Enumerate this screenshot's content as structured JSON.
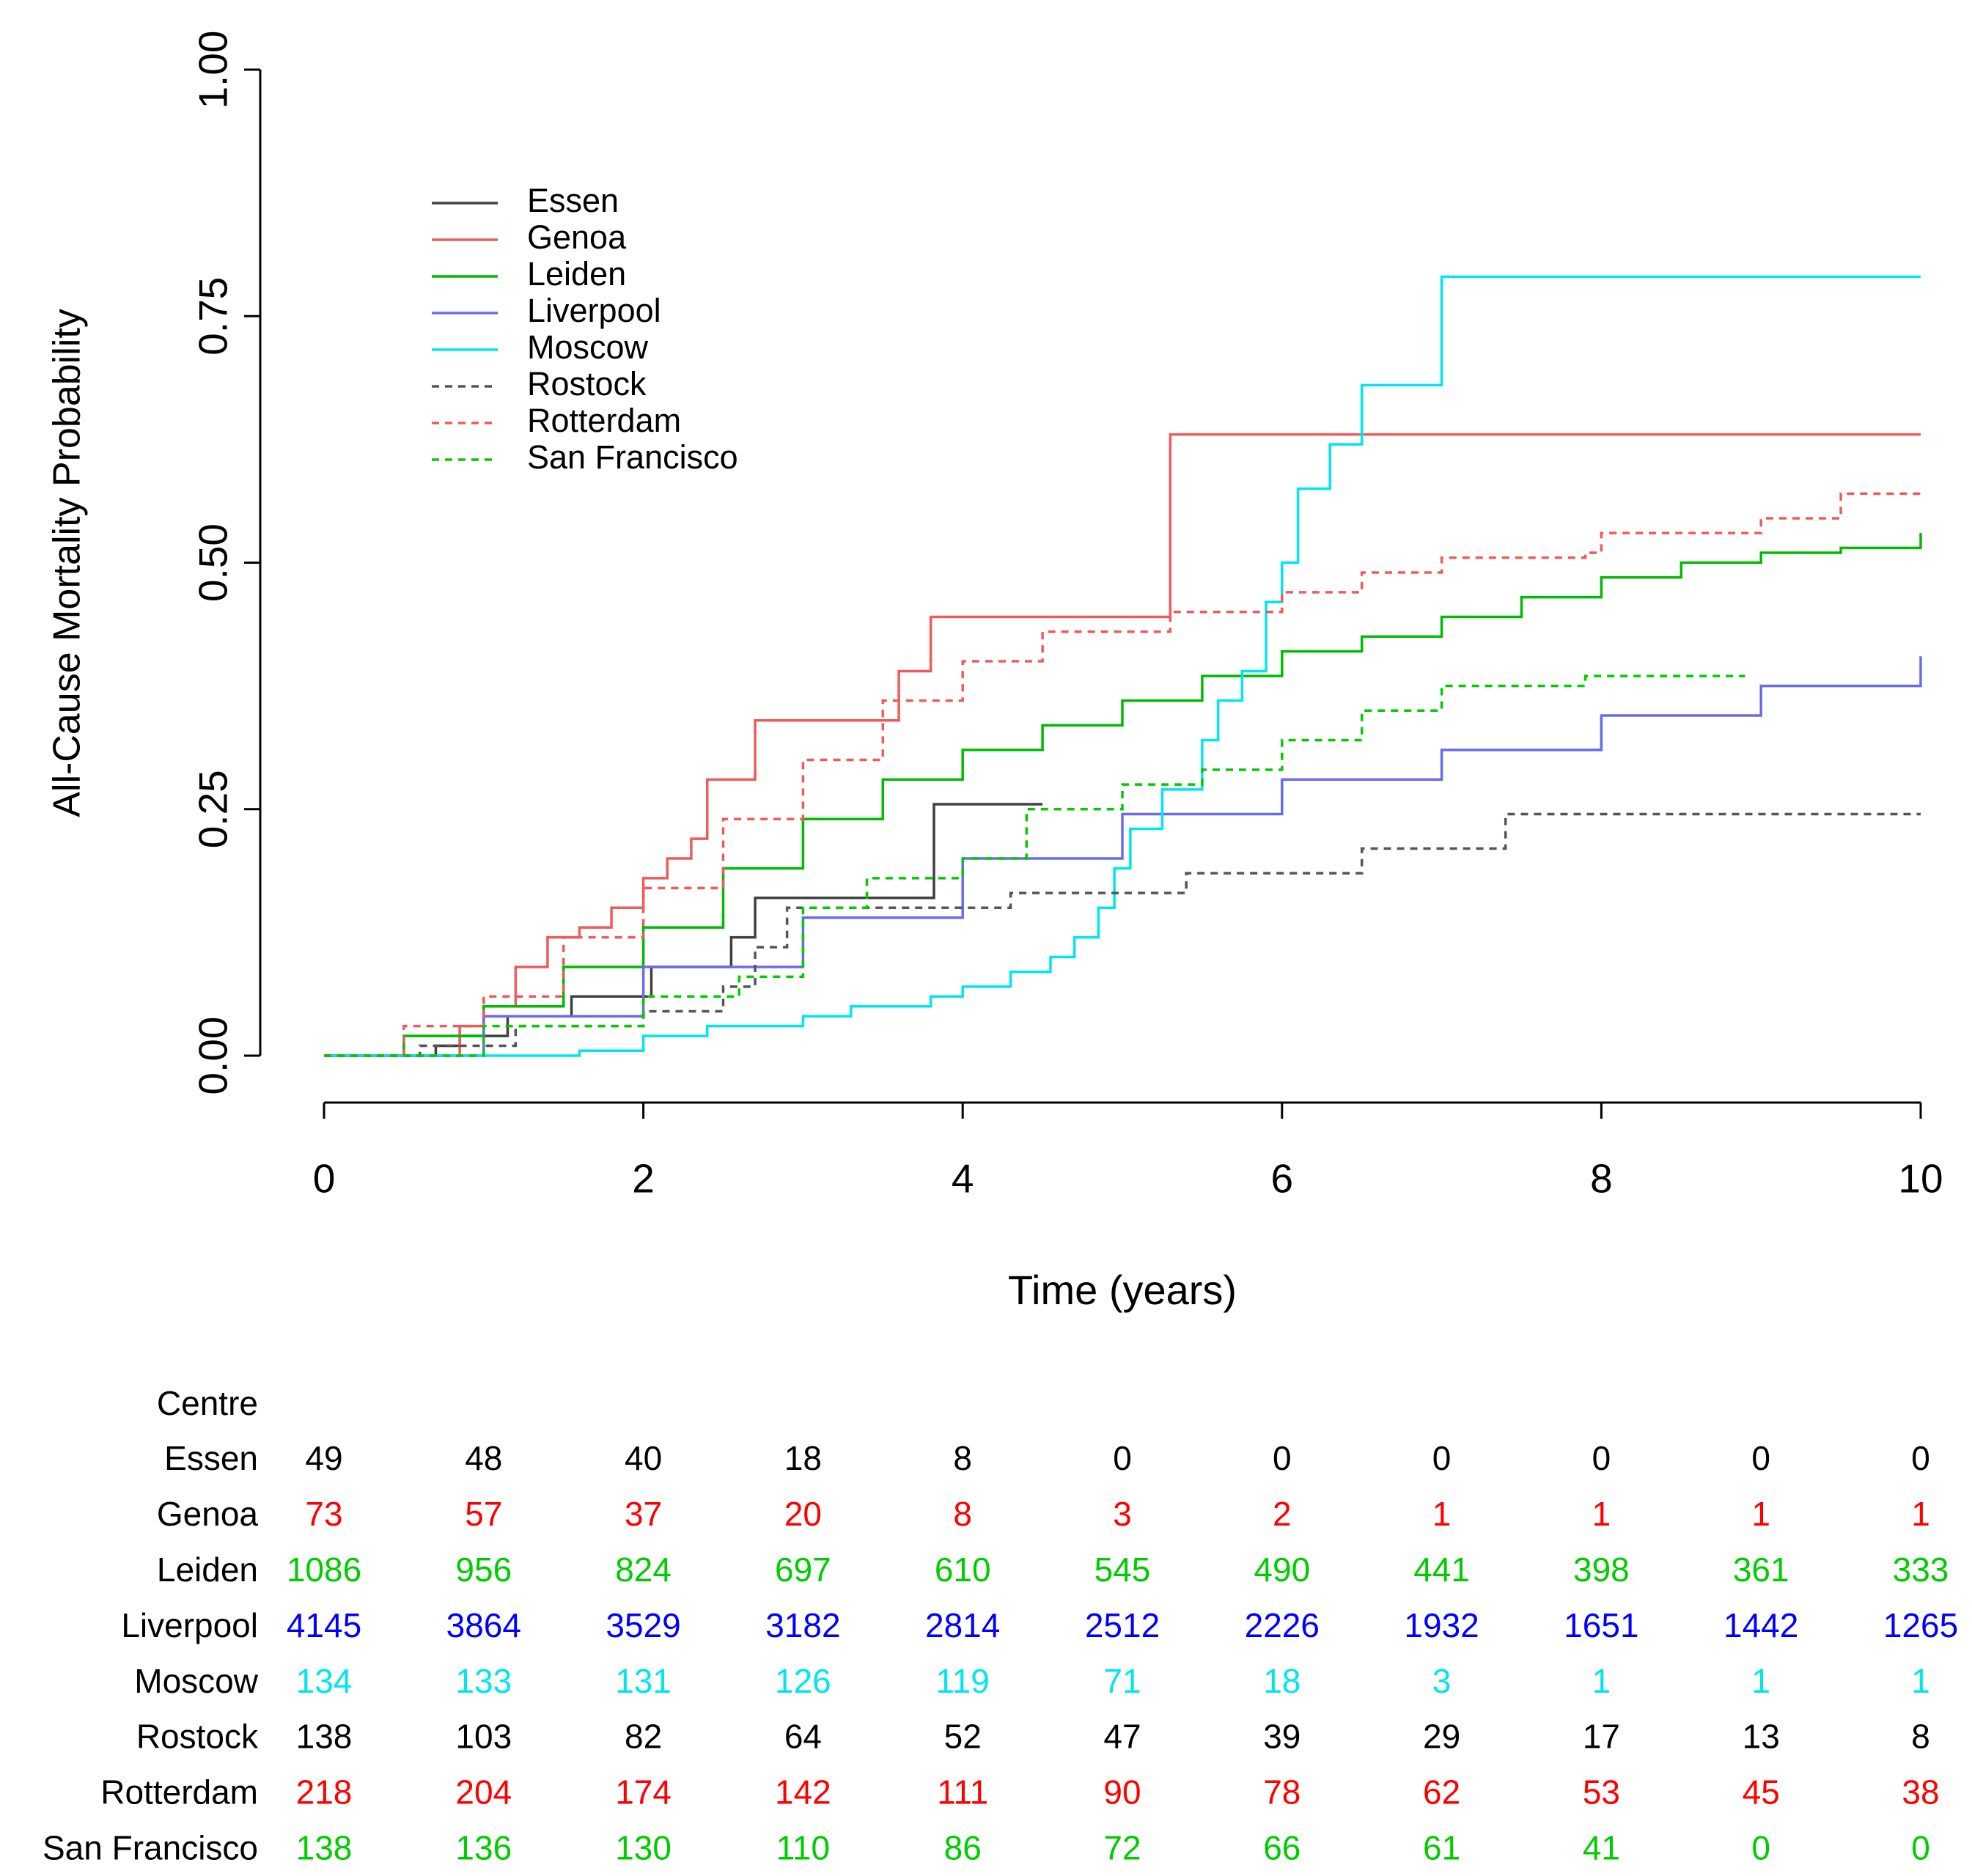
{
  "chart_data": {
    "type": "step",
    "y_label": "All-Cause Mortality Probability",
    "x_label": "Time (years)",
    "xlim": [
      0,
      10
    ],
    "xticks": [
      0,
      2,
      4,
      6,
      8,
      10
    ],
    "ylim": [
      0,
      1
    ],
    "yticks": [
      {
        "value": 0,
        "label": "0.00"
      },
      {
        "value": 0.25,
        "label": "0.25"
      },
      {
        "value": 0.5,
        "label": "0.50"
      },
      {
        "value": 0.75,
        "label": "0.75"
      },
      {
        "value": 1,
        "label": "1.00"
      }
    ],
    "legend": "upper left",
    "series": [
      {
        "name": "Essen",
        "color": "#404040",
        "dashed": false,
        "x": [
          0,
          0.7,
          0.85,
          1.15,
          1.55,
          2.05,
          2.55,
          2.7,
          3.82,
          4.5
        ],
        "values": [
          0,
          0.01,
          0.02,
          0.04,
          0.06,
          0.09,
          0.12,
          0.16,
          0.255,
          0.255
        ]
      },
      {
        "name": "Genoa",
        "color": "#f05a5a",
        "dashed": false,
        "x": [
          0,
          0.85,
          1.0,
          1.2,
          1.4,
          1.6,
          1.8,
          2.0,
          2.15,
          2.3,
          2.4,
          2.7,
          3.6,
          3.8,
          5.3,
          10
        ],
        "values": [
          0,
          0.03,
          0.05,
          0.09,
          0.12,
          0.13,
          0.15,
          0.18,
          0.2,
          0.22,
          0.28,
          0.34,
          0.39,
          0.445,
          0.63,
          0.63
        ]
      },
      {
        "name": "Leiden",
        "color": "#00bb00",
        "dashed": false,
        "x": [
          0,
          0.5,
          1,
          1.5,
          2,
          2.5,
          3,
          3.5,
          4,
          4.5,
          5,
          5.5,
          6,
          6.5,
          7,
          7.5,
          8,
          8.5,
          9,
          9.5,
          10
        ],
        "values": [
          0,
          0.02,
          0.05,
          0.09,
          0.13,
          0.19,
          0.24,
          0.28,
          0.31,
          0.335,
          0.36,
          0.385,
          0.41,
          0.425,
          0.445,
          0.465,
          0.485,
          0.5,
          0.51,
          0.515,
          0.53
        ]
      },
      {
        "name": "Liverpool",
        "color": "#6a6aee",
        "dashed": false,
        "x": [
          0,
          1,
          2,
          3,
          4,
          5,
          6,
          7,
          8,
          9,
          10
        ],
        "values": [
          0,
          0.04,
          0.09,
          0.14,
          0.2,
          0.245,
          0.28,
          0.31,
          0.345,
          0.375,
          0.405
        ]
      },
      {
        "name": "Moscow",
        "color": "#00e5ee",
        "dashed": false,
        "x": [
          0,
          1.6,
          2.0,
          2.4,
          3.0,
          3.3,
          3.8,
          4.0,
          4.3,
          4.55,
          4.7,
          4.85,
          4.95,
          5.05,
          5.25,
          5.5,
          5.6,
          5.75,
          5.9,
          6.0,
          6.1,
          6.3,
          6.5,
          7.0,
          10
        ],
        "values": [
          0,
          0.005,
          0.02,
          0.03,
          0.04,
          0.05,
          0.06,
          0.07,
          0.085,
          0.1,
          0.12,
          0.15,
          0.19,
          0.23,
          0.27,
          0.32,
          0.36,
          0.39,
          0.46,
          0.5,
          0.575,
          0.62,
          0.68,
          0.79,
          0.79
        ]
      },
      {
        "name": "Rostock",
        "color": "#555555",
        "dashed": true,
        "x": [
          0,
          0.6,
          1.2,
          2.0,
          2.5,
          2.7,
          2.9,
          4.3,
          5.4,
          6.5,
          7.4,
          10
        ],
        "values": [
          0,
          0.01,
          0.03,
          0.045,
          0.07,
          0.11,
          0.15,
          0.165,
          0.185,
          0.21,
          0.245,
          0.245
        ]
      },
      {
        "name": "Rotterdam",
        "color": "#f05a5a",
        "dashed": true,
        "x": [
          0,
          0.5,
          1,
          1.5,
          2,
          2.5,
          3,
          3.5,
          4,
          4.5,
          5.3,
          6,
          6.5,
          7,
          7.9,
          8,
          9,
          9.5,
          10
        ],
        "values": [
          0,
          0.03,
          0.06,
          0.12,
          0.17,
          0.24,
          0.3,
          0.36,
          0.4,
          0.43,
          0.45,
          0.47,
          0.49,
          0.505,
          0.51,
          0.53,
          0.545,
          0.57,
          0.57
        ]
      },
      {
        "name": "San Francisco",
        "color": "#00cc00",
        "dashed": true,
        "x": [
          0,
          1,
          2,
          2.6,
          3,
          3.4,
          4,
          4.4,
          5,
          5.5,
          6,
          6.5,
          7,
          7.9,
          8.9
        ],
        "values": [
          0,
          0.03,
          0.06,
          0.08,
          0.15,
          0.18,
          0.2,
          0.25,
          0.275,
          0.29,
          0.32,
          0.35,
          0.375,
          0.385,
          0.385
        ]
      }
    ],
    "risk_table": {
      "title": "Centre",
      "rows": [
        {
          "name": "Essen",
          "color": "#000000",
          "counts": [
            49,
            48,
            40,
            18,
            8,
            0,
            0,
            0,
            0,
            0,
            0
          ]
        },
        {
          "name": "Genoa",
          "color": "#ff0000",
          "counts": [
            73,
            57,
            37,
            20,
            8,
            3,
            2,
            1,
            1,
            1,
            1
          ]
        },
        {
          "name": "Leiden",
          "color": "#00cc00",
          "counts": [
            1086,
            956,
            824,
            697,
            610,
            545,
            490,
            441,
            398,
            361,
            333
          ]
        },
        {
          "name": "Liverpool",
          "color": "#0000ff",
          "counts": [
            4145,
            3864,
            3529,
            3182,
            2814,
            2512,
            2226,
            1932,
            1651,
            1442,
            1265
          ]
        },
        {
          "name": "Moscow",
          "color": "#00e5ee",
          "counts": [
            134,
            133,
            131,
            126,
            119,
            71,
            18,
            3,
            1,
            1,
            1
          ]
        },
        {
          "name": "Rostock",
          "color": "#000000",
          "counts": [
            138,
            103,
            82,
            64,
            52,
            47,
            39,
            29,
            17,
            13,
            8
          ]
        },
        {
          "name": "Rotterdam",
          "color": "#ff0000",
          "counts": [
            218,
            204,
            174,
            142,
            111,
            90,
            78,
            62,
            53,
            45,
            38
          ]
        },
        {
          "name": "San Francisco",
          "color": "#00cc00",
          "counts": [
            138,
            136,
            130,
            110,
            86,
            72,
            66,
            61,
            41,
            0,
            0
          ]
        }
      ]
    }
  }
}
